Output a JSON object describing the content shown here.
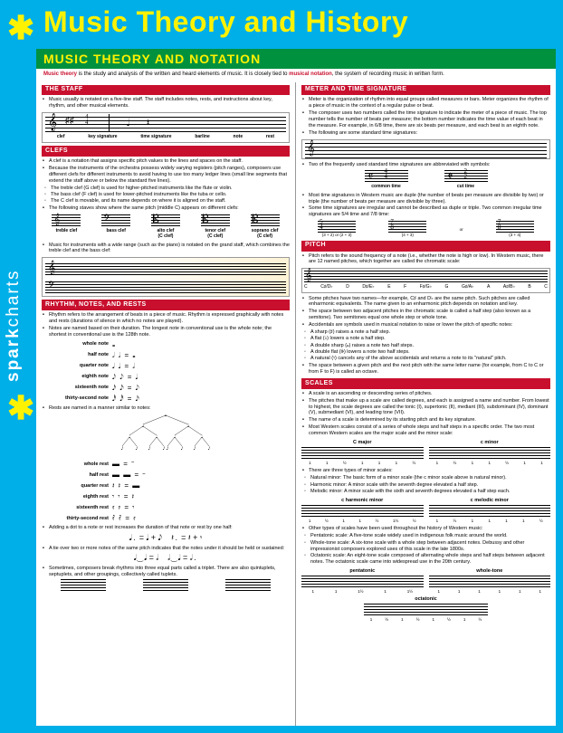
{
  "brand": {
    "spark": "spark",
    "charts": "charts",
    "asterisk": "✱"
  },
  "title": "Music Theory and History",
  "page_header": "MUSIC THEORY AND NOTATION",
  "intro": {
    "lead": "Music theory",
    "rest": " is the study and analysis of the written and heard elements of music. It is closely tied to ",
    "hl2": "musical notation",
    "tail": ", the system of recording music in written form."
  },
  "colors": {
    "bg": "#00aee8",
    "accent": "#fff200",
    "section_green": "#00913f",
    "section_red": "#c8102e",
    "text": "#000000"
  },
  "staff": {
    "header": "THE STAFF",
    "bullet": "Music usually is notated on a five-line staff. The staff includes notes, rests, and instructions about key, rhythm, and other musical elements.",
    "labels": [
      "clef",
      "key signature",
      "time signature",
      "barline",
      "note",
      "rest"
    ]
  },
  "clefs": {
    "header": "CLEFS",
    "b1": "A clef is a notation that assigns specific pitch values to the lines and spaces on the staff.",
    "b2": "Because the instruments of the orchestra possess widely varying registers (pitch ranges), composers use different clefs for different instruments to avoid having to use too many ledger lines (small line segments that extend the staff above or below the standard five lines).",
    "s1": "The treble clef (G clef) is used for higher-pitched instruments like the flute or violin.",
    "s2": "The bass clef (F clef) is used for lower-pitched instruments like the tuba or cello.",
    "s3": "The C clef is movable, and its name depends on where it is aligned on the staff.",
    "b3": "The following staves show where the same pitch (middle C) appears on different clefs:",
    "items": [
      "treble clef",
      "bass clef",
      "alto clef\n(C clef)",
      "tenor clef\n(C clef)",
      "soprano clef\n(C clef)"
    ],
    "b4": "Music for instruments with a wide range (such as the piano) is notated on the grand staff, which combines the treble clef and the bass clef:"
  },
  "rhythm": {
    "header": "RHYTHM, NOTES, AND RESTS",
    "b1": "Rhythm refers to the arrangement of beats in a piece of music. Rhythm is expressed graphically with notes and rests (durations of silence in which no notes are played).",
    "b2": "Notes are named based on their duration. The longest note in conventional use is the whole note; the shortest in conventional use is the 128th note.",
    "notes": [
      {
        "label": "whole note",
        "glyph": "𝅝"
      },
      {
        "label": "half note",
        "glyph": "𝅗𝅥  𝅗𝅥  =  𝅝"
      },
      {
        "label": "quarter note",
        "glyph": "𝅘𝅥  𝅘𝅥  =  𝅗𝅥"
      },
      {
        "label": "eighth note",
        "glyph": "𝅘𝅥𝅮 𝅘𝅥𝅮 = 𝅘𝅥"
      },
      {
        "label": "sixteenth note",
        "glyph": "𝅘𝅥𝅯 𝅘𝅥𝅯 = 𝅘𝅥𝅮"
      },
      {
        "label": "thirty-second note",
        "glyph": "𝅘𝅥𝅰 𝅘𝅥𝅰 = 𝅘𝅥𝅯"
      }
    ],
    "b3": "Rests are named in a manner similar to notes:",
    "rests": [
      {
        "label": "whole rest",
        "glyph": "▬  = 𝄻"
      },
      {
        "label": "half rest",
        "glyph": "▬ ▬ = 𝄼"
      },
      {
        "label": "quarter rest",
        "glyph": "𝄽 𝄽 = ▬"
      },
      {
        "label": "eighth rest",
        "glyph": "𝄾 𝄾 = 𝄽"
      },
      {
        "label": "sixteenth rest",
        "glyph": "𝄿 𝄿 = 𝄾"
      },
      {
        "label": "thirty-second rest",
        "glyph": "𝅀 𝅀 = 𝄿"
      }
    ],
    "b4": "Adding a dot to a note or rest increases the duration of that note or rest by one half:",
    "b5": "A tie over two or more notes of the same pitch indicates that the notes under it should be held or sustained:",
    "b6": "Sometimes, composers break rhythms into three equal parts called a triplet. There are also quintuplets, septuplets, and other groupings, collectively called tuplets."
  },
  "meter": {
    "header": "METER AND TIME SIGNATURE",
    "b1": "Meter is the organization of rhythm into equal groups called measures or bars. Meter organizes the rhythm of a piece of music in the context of a regular pulse or beat.",
    "b2": "The composer uses two numbers called the time signature to indicate the meter of a piece of music. The top number tells the number of beats per measure; the bottom number indicates the time value of each beat in the measure. For example, in 6/8 time, there are six beats per measure, and each beat is an eighth note.",
    "b3": "The following are some standard time signatures:",
    "ts_list": [
      "4/4",
      "3/4",
      "6/8",
      "2/2"
    ],
    "b4": "Two of the frequently used standard time signatures are abbreviated with symbols:",
    "common": "common time",
    "common_sym": "𝄴",
    "common_frac": "4/4",
    "cut": "cut time",
    "cut_sym": "𝄵",
    "cut_frac": "2/2",
    "b5": "Most time signatures in Western music are duple (the number of beats per measure are divisible by two) or triple (the number of beats per measure are divisible by three).",
    "b6": "Some time signatures are irregular and cannot be described as duple or triple. Two common irregular time signatures are 5/4 time and 7/8 time:",
    "irr": [
      {
        "ts": "5/4",
        "sub": "(3 + 2) or (2 + 3)"
      },
      {
        "ts": "7/8",
        "sub": "(4 + 3)"
      },
      {
        "or": "or"
      },
      {
        "ts": "7/8",
        "sub": "(3 + 4)"
      }
    ]
  },
  "pitch": {
    "header": "PITCH",
    "b1": "Pitch refers to the sound frequency of a note (i.e., whether the note is high or low). In Western music, there are 12 named pitches, which together are called the chromatic scale:",
    "chrom": [
      "C",
      "C♯/D♭",
      "D",
      "D♯/E♭",
      "E",
      "F",
      "F♯/G♭",
      "G",
      "G♯/A♭",
      "A",
      "A♯/B♭",
      "B",
      "C"
    ],
    "b2": "Some pitches have two names—for example, C♯ and D♭ are the same pitch. Such pitches are called enharmonic equivalents. The name given to an enharmonic pitch depends on notation and key.",
    "b3": "The space between two adjacent pitches in the chromatic scale is called a half step (also known as a semitone). Two semitones equal one whole step or whole tone.",
    "b4": "Accidentals are symbols used in musical notation to raise or lower the pitch of specific notes:",
    "acc": [
      "A sharp (♯) raises a note a half step.",
      "A flat (♭) lowers a note a half step.",
      "A double sharp (𝄪) raises a note two half steps.",
      "A double flat (𝄫) lowers a note two half steps.",
      "A natural (♮) cancels any of the above accidentals and returns a note to its \"natural\" pitch."
    ],
    "b5": "The space between a given pitch and the next pitch with the same letter name (for example, from C to C or from F to F) is called an octave."
  },
  "scales": {
    "header": "SCALES",
    "b1": "A scale is an ascending or descending series of pitches.",
    "b2": "The pitches that make up a scale are called degrees, and each is assigned a name and number. From lowest to highest, the scale degrees are called the tonic (I), supertonic (II), mediant (III), subdominant (IV), dominant (V), submediant (VI), and leading tone (VII).",
    "b3": "The name of a scale is determined by its starting pitch and its key signature.",
    "b4": "Most Western scales consist of a series of whole steps and half steps in a specific order. The two most common Western scales are the major scale and the minor scale:",
    "major": "C major",
    "minor": "c minor",
    "deg": [
      "1",
      "1",
      "½",
      "1",
      "1",
      "1",
      "½"
    ],
    "deg_minor": [
      "1",
      "½",
      "1",
      "1",
      "½",
      "1",
      "1"
    ],
    "b5": "There are three types of minor scales:",
    "m1": "Natural minor: The basic form of a minor scale (the c minor scale above is natural minor).",
    "m2": "Harmonic minor: A minor scale with the seventh degree elevated a half step.",
    "m3": "Melodic minor: A minor scale with the sixth and seventh degrees elevated a half step each.",
    "harm": "c harmonic minor",
    "mel": "c melodic minor",
    "deg_harm": [
      "1",
      "½",
      "1",
      "1",
      "½",
      "1½",
      "½"
    ],
    "deg_mel": [
      "1",
      "½",
      "1",
      "1",
      "1",
      "1",
      "½"
    ],
    "b6": "Other types of scales have been used throughout the history of Western music:",
    "o1": "Pentatonic scale: A five-tone scale widely used in indigenous folk music around the world.",
    "o2": "Whole-tone scale: A six-tone scale with a whole step between adjacent notes. Debussy and other impressionist composers explored uses of this scale in the late 1800s.",
    "o3": "Octatonic scale: An eight-tone scale composed of alternating whole steps and half steps between adjacent notes. The octatonic scale came into widespread use in the 20th century.",
    "pent": "pentatonic",
    "whole": "whole-tone",
    "oct": "octatonic",
    "deg_pent": [
      "1",
      "1",
      "1½",
      "1",
      "1½"
    ],
    "deg_whole": [
      "1",
      "1",
      "1",
      "1",
      "1",
      "1"
    ],
    "deg_oct": [
      "1",
      "½",
      "1",
      "½",
      "1",
      "½",
      "1",
      "½"
    ]
  }
}
